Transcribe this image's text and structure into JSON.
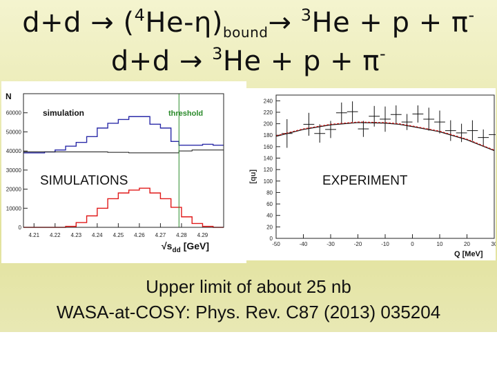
{
  "title": {
    "line1": {
      "a": "d+d → (",
      "sup1": "4",
      "b": "He-η)",
      "sub": "bound",
      "c": "→ ",
      "sup2": "3",
      "d": "He + p + π",
      "sup3": "-"
    },
    "line2": {
      "a": "d+d → ",
      "sup1": "3",
      "b": "He + p + π",
      "sup2": "-"
    }
  },
  "left_plot": {
    "y_axis_label": "N",
    "x_axis_label": "√s",
    "x_axis_sub": "dd",
    "x_axis_unit": "[GeV]",
    "legend_simulation": "simulation",
    "threshold_label": "threshold",
    "y_ticks": [
      "0",
      "10000",
      "20000",
      "30000",
      "40000",
      "50000",
      "60000"
    ],
    "x_ticks": [
      "4.21",
      "4.22",
      "4.23",
      "4.24",
      "4.25",
      "4.26",
      "4.27",
      "4.28",
      "4.29"
    ],
    "panel_label": "SIMULATIONS",
    "colors": {
      "blue": "#2a2aa8",
      "red": "#e01818",
      "green": "#2a8a2a"
    }
  },
  "right_plot": {
    "y_axis_label": "[nb]",
    "x_axis_label": "Q [MeV]",
    "y_ticks": [
      "0",
      "20",
      "40",
      "60",
      "80",
      "100",
      "120",
      "140",
      "160",
      "180",
      "200",
      "220",
      "240"
    ],
    "x_ticks": [
      "-50",
      "-40",
      "-30",
      "-20",
      "-10",
      "0",
      "10",
      "20",
      "30"
    ],
    "panel_label": "EXPERIMENT",
    "colors": {
      "fit": "#111111",
      "fit2": "#d01818"
    }
  },
  "chart_data": [
    {
      "type": "line",
      "title": "",
      "xlabel": "√s_dd [GeV]",
      "ylabel": "N",
      "xlim": [
        4.205,
        4.3
      ],
      "ylim": [
        0,
        70000
      ],
      "threshold_x": 4.2788,
      "series": [
        {
          "name": "simulation (blue)",
          "x": [
            4.205,
            4.215,
            4.22,
            4.225,
            4.23,
            4.235,
            4.24,
            4.245,
            4.25,
            4.255,
            4.26,
            4.265,
            4.27,
            4.275,
            4.2788,
            4.285,
            4.29,
            4.295,
            4.3
          ],
          "y": [
            39000,
            39500,
            40500,
            42500,
            44500,
            47500,
            52000,
            54500,
            56500,
            58000,
            58000,
            54000,
            52000,
            45000,
            43000,
            43000,
            43500,
            43000,
            43000
          ]
        },
        {
          "name": "black",
          "x": [
            4.205,
            4.215,
            4.225,
            4.235,
            4.245,
            4.255,
            4.265,
            4.275,
            4.2788,
            4.285,
            4.29,
            4.3
          ],
          "y": [
            39500,
            39500,
            39500,
            39500,
            39300,
            39000,
            39000,
            39000,
            40000,
            40500,
            40500,
            40500
          ]
        },
        {
          "name": "red",
          "x": [
            4.205,
            4.22,
            4.225,
            4.23,
            4.235,
            4.24,
            4.245,
            4.25,
            4.255,
            4.26,
            4.265,
            4.27,
            4.275,
            4.28,
            4.285,
            4.29,
            4.295,
            4.3
          ],
          "y": [
            0,
            0,
            500,
            2500,
            6000,
            10000,
            15000,
            18000,
            19500,
            20500,
            18000,
            15000,
            10500,
            5500,
            2000,
            500,
            0,
            0
          ]
        }
      ]
    },
    {
      "type": "scatter",
      "title": "",
      "xlabel": "Q [MeV]",
      "ylabel": "[nb]",
      "xlim": [
        -50,
        30
      ],
      "ylim": [
        0,
        250
      ],
      "series": [
        {
          "name": "data",
          "x": [
            -46,
            -38,
            -34,
            -30,
            -26,
            -22,
            -18,
            -14,
            -10,
            -6,
            -2,
            2,
            6,
            10,
            14,
            18,
            22,
            26,
            30
          ],
          "y": [
            183,
            199,
            183,
            190,
            219,
            221,
            191,
            213,
            208,
            216,
            203,
            217,
            208,
            203,
            188,
            184,
            188,
            176,
            181
          ],
          "err": [
            25,
            20,
            16,
            15,
            18,
            18,
            14,
            18,
            22,
            16,
            14,
            15,
            20,
            20,
            18,
            16,
            18,
            14,
            25
          ]
        },
        {
          "name": "fit",
          "x": [
            -50,
            -40,
            -30,
            -20,
            -10,
            -5,
            0,
            10,
            20,
            30
          ],
          "y": [
            178,
            190,
            198,
            202,
            201,
            199,
            195,
            186,
            172,
            153
          ]
        },
        {
          "name": "fit2",
          "x": [
            -50,
            -40,
            -30,
            -20,
            -10,
            -5,
            0,
            10,
            20,
            30
          ],
          "y": [
            179,
            191,
            199,
            203,
            202,
            200,
            196,
            187,
            173,
            154
          ]
        }
      ]
    }
  ],
  "bottom": {
    "line1": "Upper limit of about 25 nb",
    "line2": "WASA-at-COSY: Phys. Rev. C87 (2013) 035204"
  }
}
